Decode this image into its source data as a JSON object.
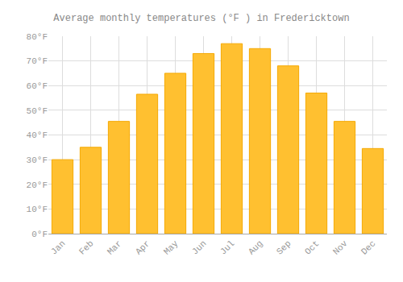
{
  "chart_data": {
    "type": "bar",
    "title": "Average monthly temperatures (°F ) in Fredericktown",
    "categories": [
      "Jan",
      "Feb",
      "Mar",
      "Apr",
      "May",
      "Jun",
      "Jul",
      "Aug",
      "Sep",
      "Oct",
      "Nov",
      "Dec"
    ],
    "values": [
      30,
      35,
      45.5,
      56.5,
      65,
      73,
      77,
      75,
      68,
      57,
      45.5,
      34.5
    ],
    "color": "#FFC030",
    "ylim": [
      0,
      80
    ],
    "yticks": [
      {
        "value": 0,
        "label": "0°F"
      },
      {
        "value": 10,
        "label": "10°F"
      },
      {
        "value": 20,
        "label": "20°F"
      },
      {
        "value": 30,
        "label": "30°F"
      },
      {
        "value": 40,
        "label": "40°F"
      },
      {
        "value": 50,
        "label": "50°F"
      },
      {
        "value": 60,
        "label": "60°F"
      },
      {
        "value": 70,
        "label": "70°F"
      },
      {
        "value": 80,
        "label": "80°F"
      }
    ],
    "grid": true
  }
}
